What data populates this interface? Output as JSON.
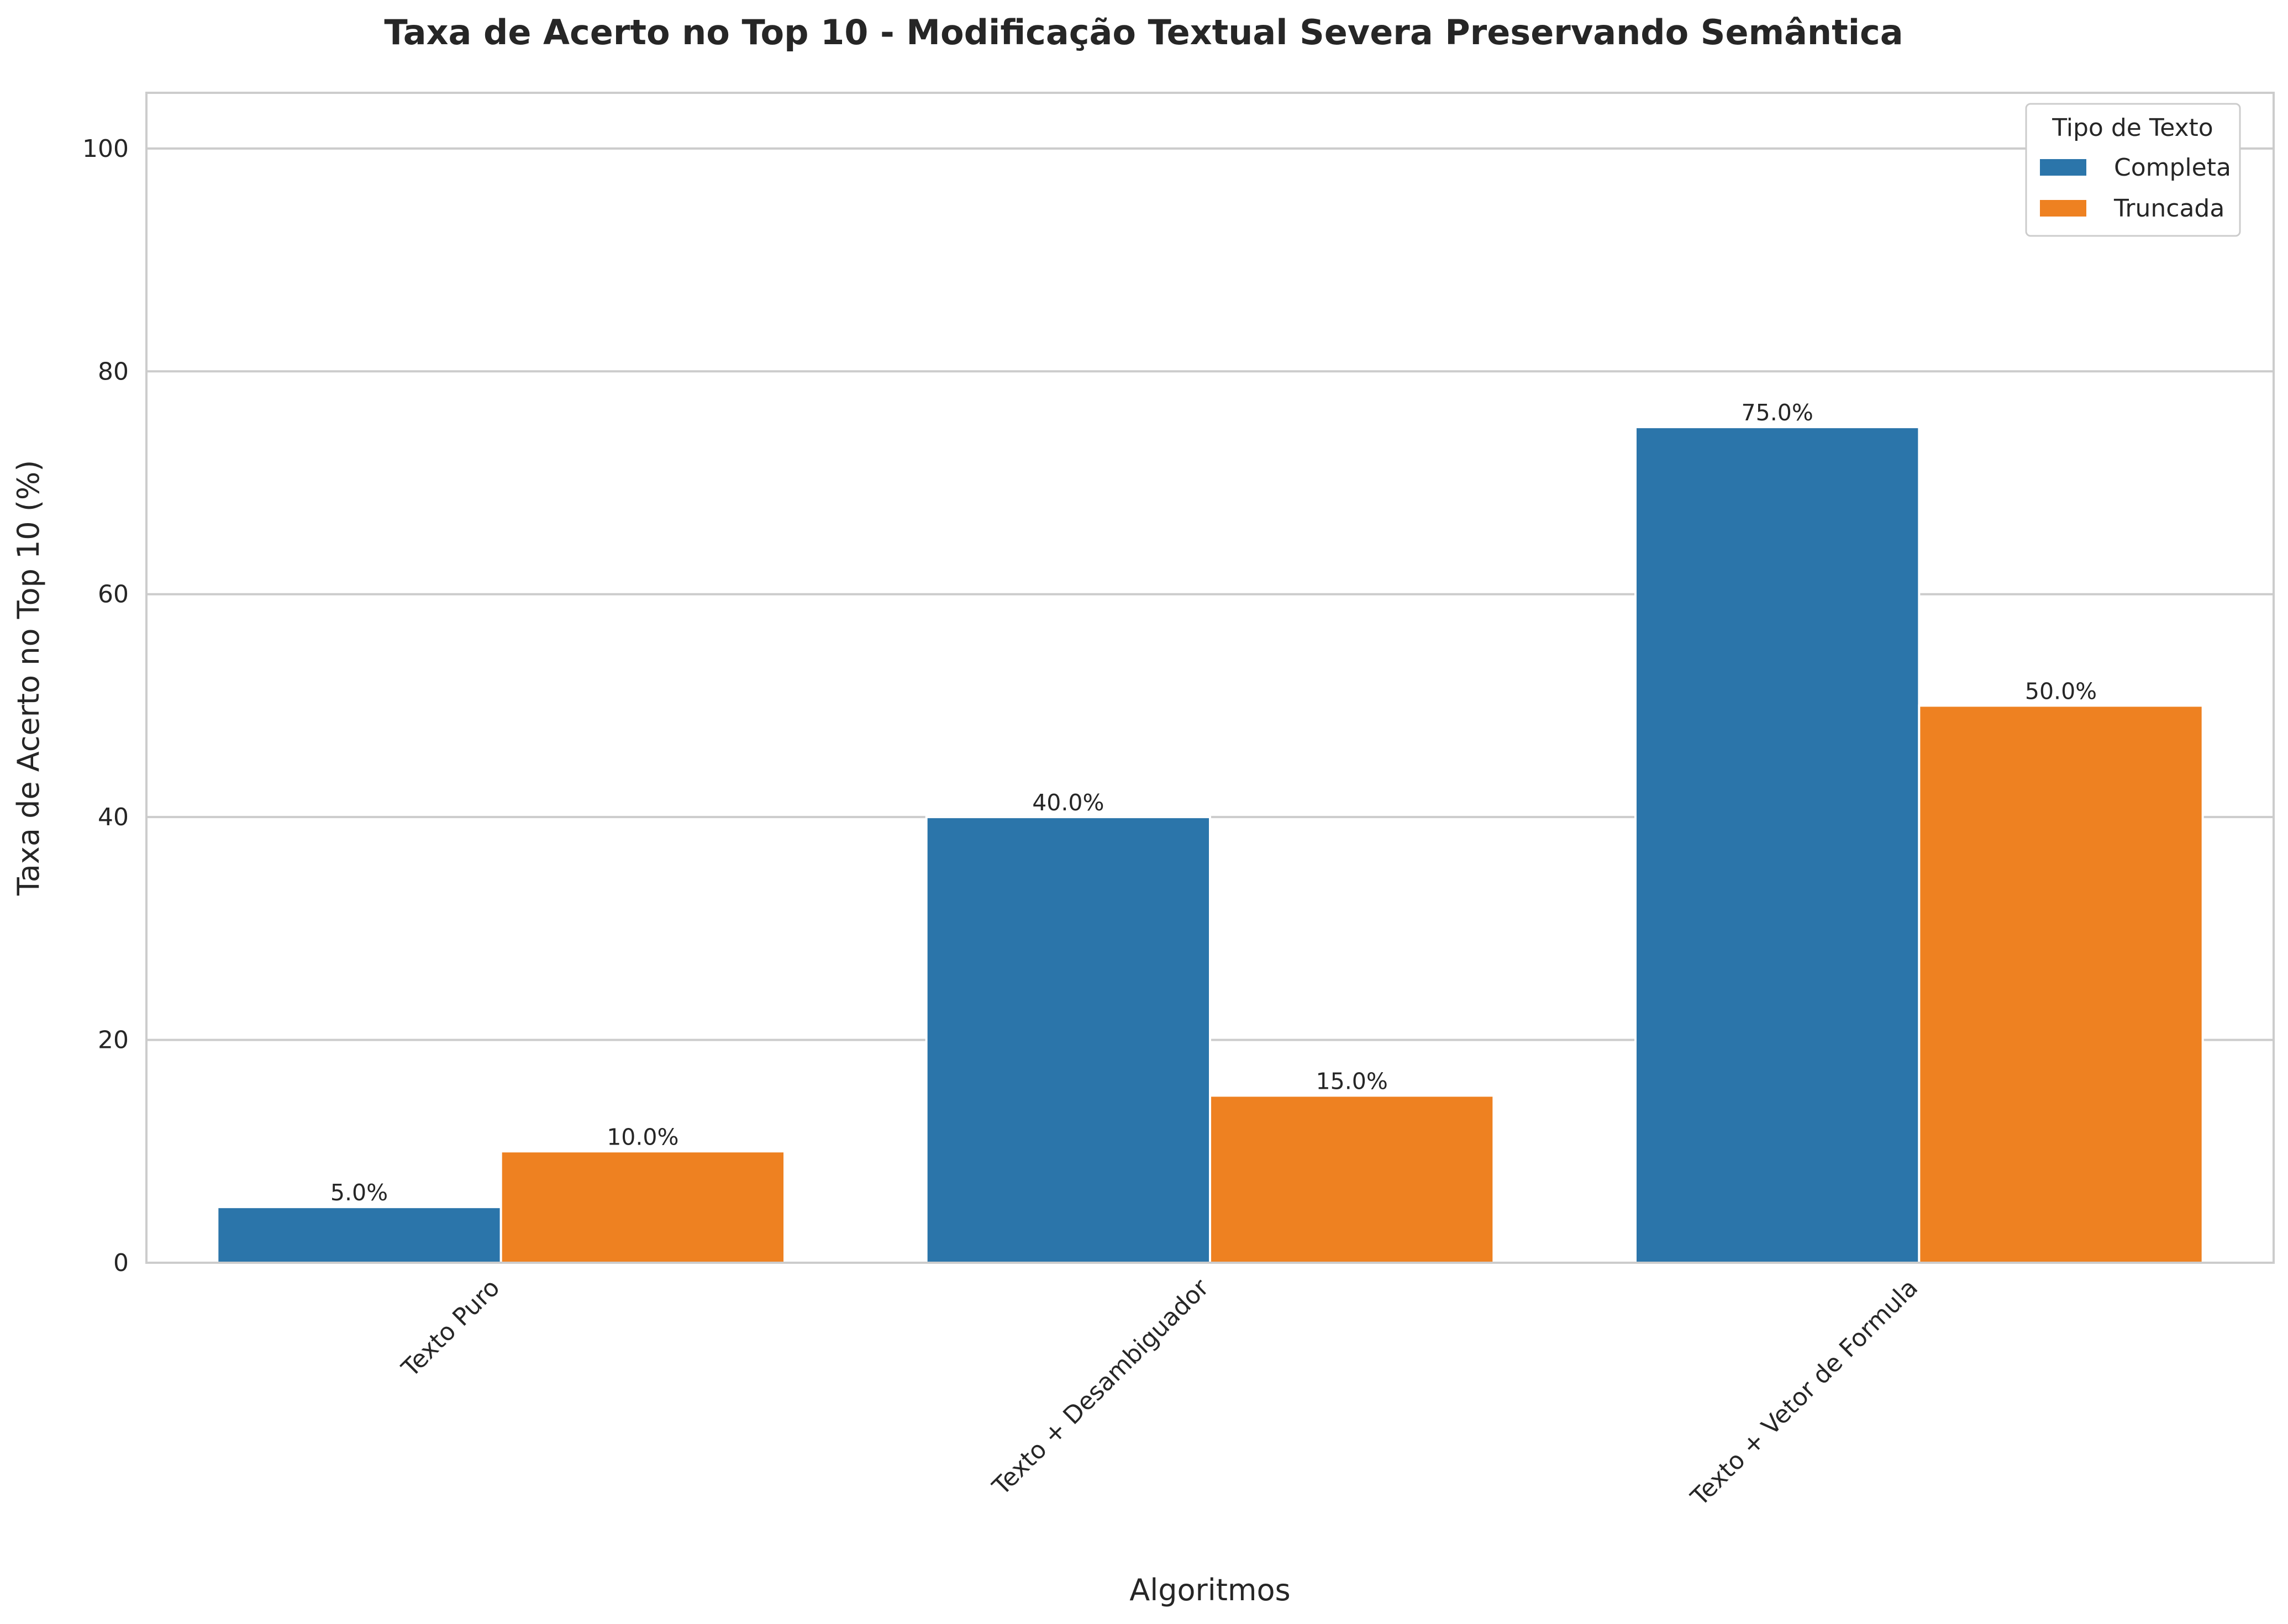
{
  "chart_data": {
    "type": "bar",
    "title": "Taxa de Acerto no Top 10 - Modificação Textual Severa Preservando Semântica",
    "xlabel": "Algoritmos",
    "ylabel": "Taxa de Acerto no Top 10 (%)",
    "categories": [
      "Texto Puro",
      "Texto + Desambiguador",
      "Texto + Vetor de Formula"
    ],
    "series": [
      {
        "name": "Completa",
        "values": [
          5.0,
          40.0,
          75.0
        ],
        "color": "#2b75aa",
        "value_labels": [
          "5.0%",
          "40.0%",
          "75.0%"
        ]
      },
      {
        "name": "Truncada",
        "values": [
          10.0,
          15.0,
          50.0
        ],
        "color": "#ee8121",
        "value_labels": [
          "10.0%",
          "15.0%",
          "50.0%"
        ]
      }
    ],
    "ylim": [
      0,
      105
    ],
    "yticks": [
      0,
      20,
      40,
      60,
      80,
      100
    ],
    "grid": true,
    "legend": {
      "title": "Tipo de Texto",
      "placement": "top-right"
    }
  }
}
